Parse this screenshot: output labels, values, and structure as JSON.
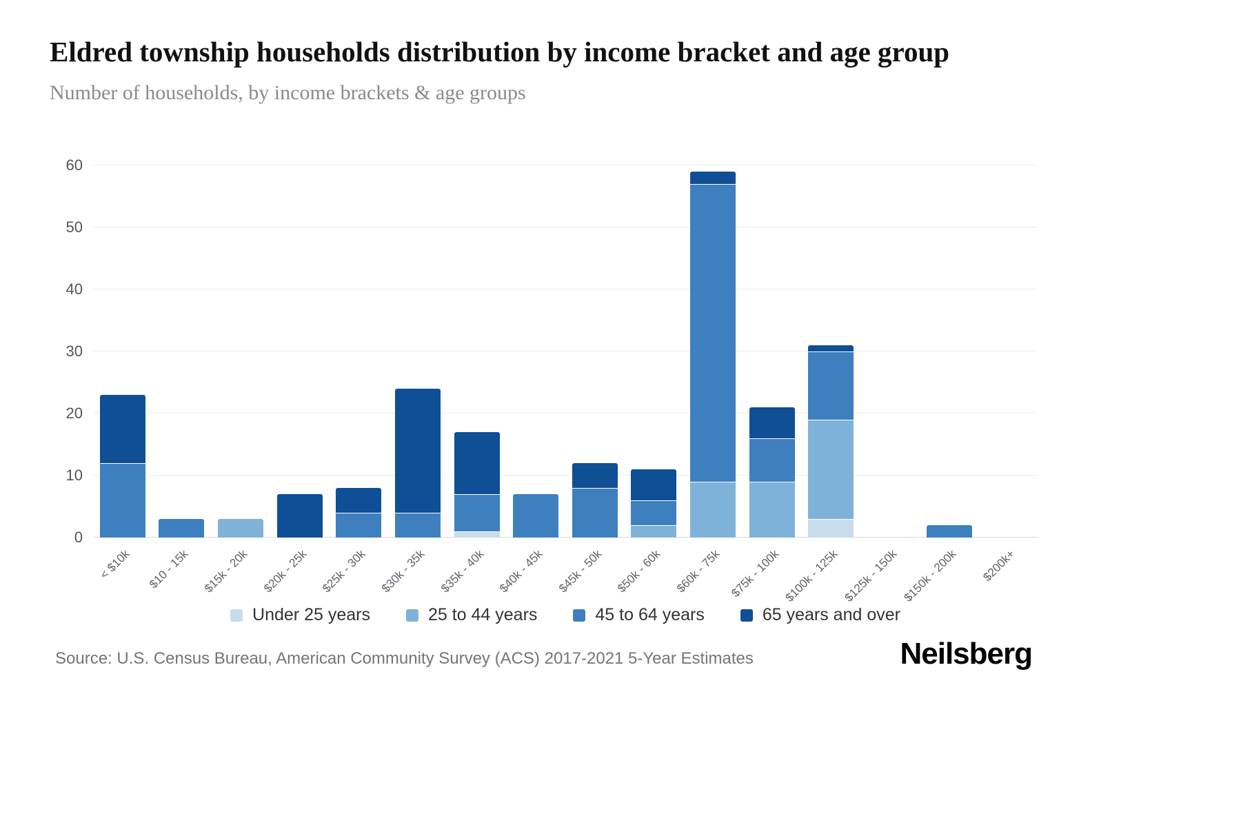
{
  "header": {
    "title": "Eldred township households distribution by income bracket and age group",
    "subtitle": "Number of households, by income brackets & age groups"
  },
  "footer": {
    "source": "Source: U.S. Census Bureau, American Community Survey (ACS) 2017-2021 5-Year Estimates",
    "brand": "Neilsberg"
  },
  "chart_data": {
    "type": "bar",
    "stacked": true,
    "title": "Eldred township households distribution by income bracket and age group",
    "subtitle": "Number of households, by income brackets & age groups",
    "xlabel": "",
    "ylabel": "",
    "ylim": [
      0,
      60
    ],
    "yticks": [
      0,
      10,
      20,
      30,
      40,
      50,
      60
    ],
    "grid": true,
    "legend_position": "bottom",
    "categories": [
      "< $10k",
      "$10 - 15k",
      "$15k - 20k",
      "$20k - 25k",
      "$25k - 30k",
      "$30k - 35k",
      "$35k - 40k",
      "$40k - 45k",
      "$45k - 50k",
      "$50k - 60k",
      "$60k - 75k",
      "$75k - 100k",
      "$100k - 125k",
      "$125k - 150k",
      "$150k - 200k",
      "$200k+"
    ],
    "series": [
      {
        "name": "Under 25 years",
        "color": "#c7dcec",
        "values": [
          0,
          0,
          0,
          0,
          0,
          0,
          1,
          0,
          0,
          0,
          0,
          0,
          3,
          0,
          0,
          0
        ]
      },
      {
        "name": "25 to 44 years",
        "color": "#7fb2d8",
        "values": [
          0,
          0,
          3,
          0,
          0,
          0,
          0,
          0,
          0,
          2,
          9,
          9,
          16,
          0,
          0,
          0
        ]
      },
      {
        "name": "45 to 64 years",
        "color": "#3d7fbf",
        "values": [
          12,
          3,
          0,
          0,
          4,
          4,
          6,
          7,
          8,
          4,
          48,
          7,
          11,
          0,
          2,
          0
        ]
      },
      {
        "name": "65 years and over",
        "color": "#0e4f96",
        "values": [
          11,
          0,
          0,
          7,
          4,
          20,
          10,
          0,
          4,
          5,
          2,
          5,
          1,
          0,
          0,
          0
        ]
      }
    ],
    "totals": [
      23,
      3,
      3,
      7,
      8,
      24,
      17,
      7,
      12,
      11,
      59,
      21,
      31,
      0,
      2,
      0
    ]
  }
}
